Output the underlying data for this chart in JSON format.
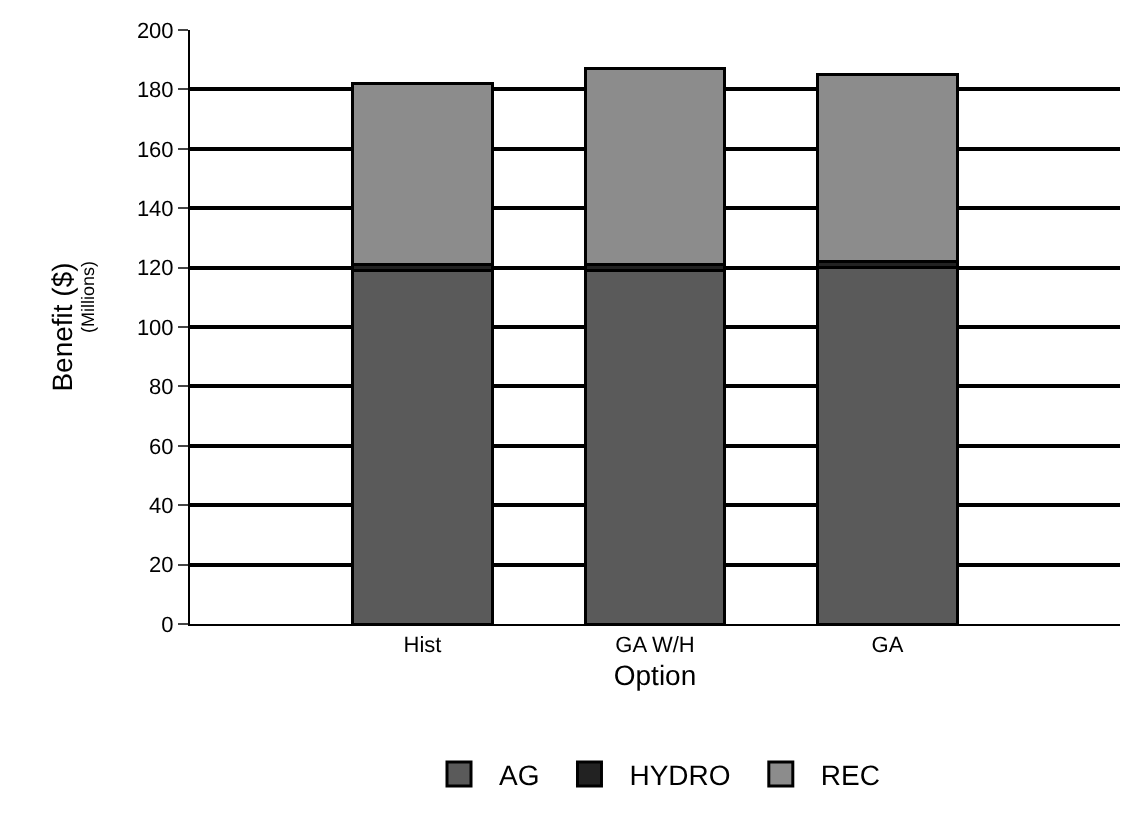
{
  "chart_data": {
    "type": "bar",
    "stacked": true,
    "xlabel": "Option",
    "ylabel": "Benefit ($)",
    "annotations": [
      "(Millions)"
    ],
    "categories": [
      "Hist",
      "GA W/H",
      "GA"
    ],
    "series": [
      {
        "name": "AG",
        "color": "#5a5a5a",
        "values": [
          119,
          119,
          120
        ]
      },
      {
        "name": "HYDRO",
        "color": "#222222",
        "values": [
          2,
          2,
          2
        ]
      },
      {
        "name": "REC",
        "color": "#8c8c8c",
        "values": [
          61,
          66,
          63
        ]
      }
    ],
    "ylim": [
      0,
      200
    ],
    "yticks": [
      0,
      20,
      40,
      60,
      80,
      100,
      120,
      140,
      160,
      180,
      200
    ],
    "grid": "y",
    "legend": "bottom"
  }
}
